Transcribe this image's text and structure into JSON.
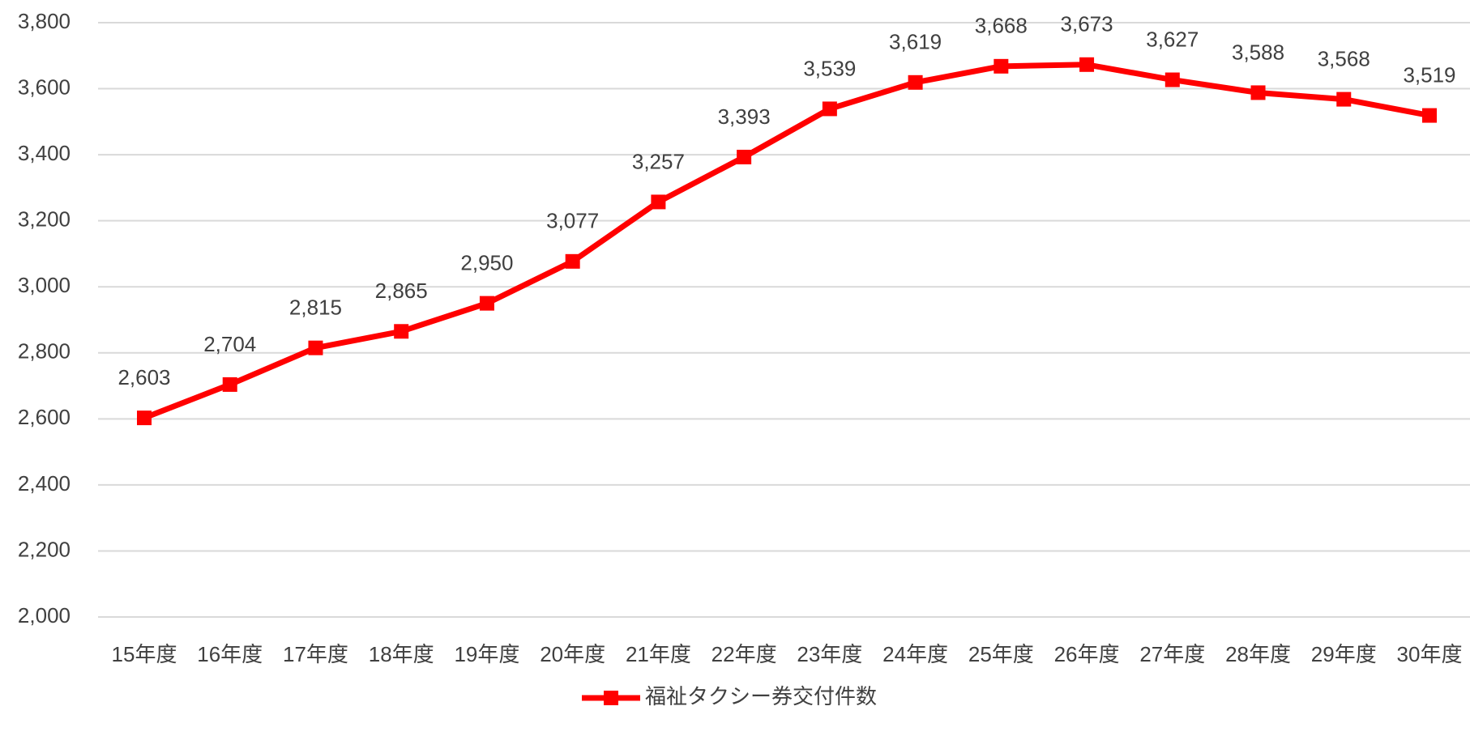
{
  "chart_data": {
    "type": "line",
    "categories": [
      "15年度",
      "16年度",
      "17年度",
      "18年度",
      "19年度",
      "20年度",
      "21年度",
      "22年度",
      "23年度",
      "24年度",
      "25年度",
      "26年度",
      "27年度",
      "28年度",
      "29年度",
      "30年度"
    ],
    "series": [
      {
        "name": "福祉タクシー券交付件数",
        "color": "#ff0000",
        "values": [
          2603,
          2704,
          2815,
          2865,
          2950,
          3077,
          3257,
          3393,
          3539,
          3619,
          3668,
          3673,
          3627,
          3588,
          3568,
          3519
        ],
        "value_labels": [
          "2,603",
          "2,704",
          "2,815",
          "2,865",
          "2,950",
          "3,077",
          "3,257",
          "3,393",
          "3,539",
          "3,619",
          "3,668",
          "3,673",
          "3,627",
          "3,588",
          "3,568",
          "3,519"
        ]
      }
    ],
    "ylim": [
      2000,
      3800
    ],
    "yticks": [
      {
        "value": 2000,
        "label": "2,000"
      },
      {
        "value": 2200,
        "label": "2,200"
      },
      {
        "value": 2400,
        "label": "2,400"
      },
      {
        "value": 2600,
        "label": "2,600"
      },
      {
        "value": 2800,
        "label": "2,800"
      },
      {
        "value": 3000,
        "label": "3,000"
      },
      {
        "value": 3200,
        "label": "3,200"
      },
      {
        "value": 3400,
        "label": "3,400"
      },
      {
        "value": 3600,
        "label": "3,600"
      },
      {
        "value": 3800,
        "label": "3,800"
      }
    ],
    "grid": true,
    "legend": "bottom"
  }
}
